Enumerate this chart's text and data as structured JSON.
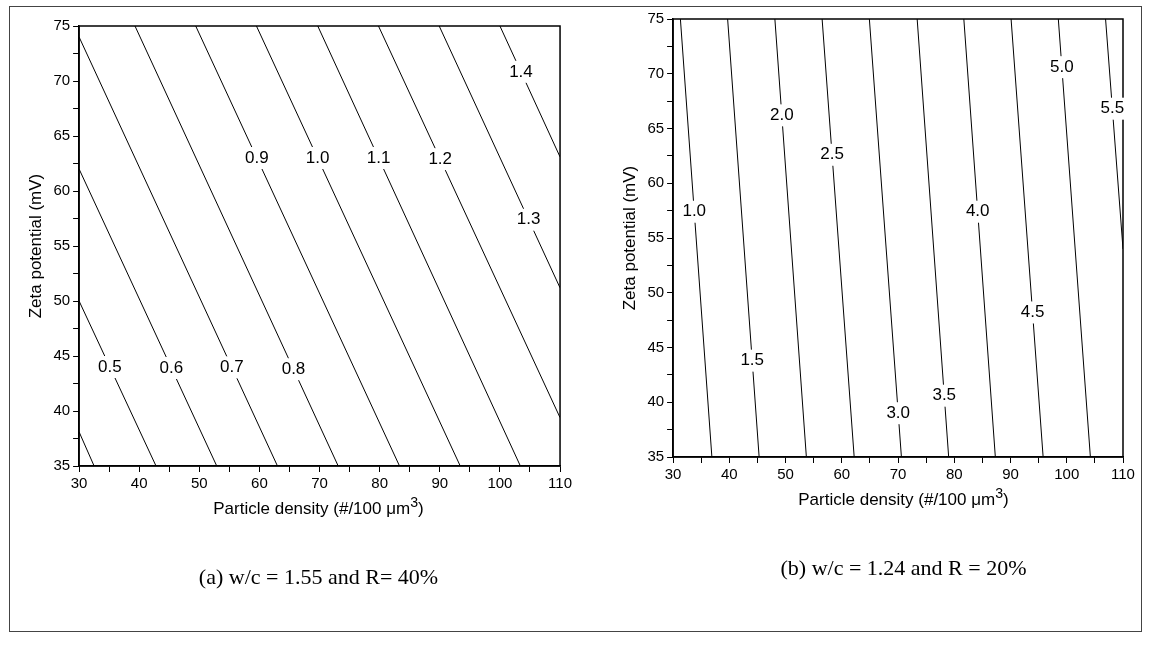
{
  "chart_data": [
    {
      "type": "line",
      "title": "(a) w/c = 1.55 and R= 40%",
      "xlabel": "Particle density (#/100 μm$^{3}$)",
      "ylabel": "Zeta potential (mV)",
      "line_style": "solid",
      "xlim": [
        30,
        110
      ],
      "ylim": [
        35,
        75
      ],
      "xticks": [
        30,
        {
          "value": 35,
          "label": null
        },
        40,
        {
          "value": 45,
          "label": null
        },
        50,
        {
          "value": 55,
          "label": null
        },
        60,
        {
          "value": 65,
          "label": null
        },
        70,
        {
          "value": 75,
          "label": null
        },
        80,
        {
          "value": 85,
          "label": null
        },
        90,
        {
          "value": 95,
          "label": null
        },
        100,
        {
          "value": 105,
          "label": null
        },
        110
      ],
      "yticks": [
        35,
        {
          "value": 37.5,
          "label": null
        },
        40,
        {
          "value": 42.5,
          "label": null
        },
        45,
        {
          "value": 47.5,
          "label": null
        },
        50,
        {
          "value": 52.5,
          "label": null
        },
        55,
        {
          "value": 57.5,
          "label": null
        },
        60,
        {
          "value": 62.5,
          "label": null
        },
        65,
        {
          "value": 67.5,
          "label": null
        },
        70,
        {
          "value": 72.5,
          "label": null
        },
        75
      ],
      "series": [
        {
          "color": "#000000",
          "x": [
            30,
            32.5
          ],
          "values": [
            38.1,
            35
          ]
        },
        {
          "name": "0.5",
          "color": "#000000",
          "x": [
            30,
            42.8
          ],
          "values": [
            50,
            35
          ]
        },
        {
          "name": "0.6",
          "color": "#000000",
          "x": [
            30,
            52.9
          ],
          "values": [
            62,
            35
          ]
        },
        {
          "name": "0.7",
          "color": "#000000",
          "x": [
            30,
            63
          ],
          "values": [
            74,
            35
          ]
        },
        {
          "name": "0.8",
          "color": "#000000",
          "x": [
            39.3,
            73.1
          ],
          "values": [
            75,
            35
          ]
        },
        {
          "name": "0.9",
          "color": "#000000",
          "x": [
            49.4,
            83.3
          ],
          "values": [
            75,
            35
          ]
        },
        {
          "name": "1.0",
          "color": "#000000",
          "x": [
            59.5,
            93.4
          ],
          "values": [
            75,
            35
          ]
        },
        {
          "name": "1.1",
          "color": "#000000",
          "x": [
            69.7,
            103.4
          ],
          "values": [
            75,
            35
          ]
        },
        {
          "name": "1.2",
          "color": "#000000",
          "x": [
            79.8,
            110
          ],
          "values": [
            75,
            39.4
          ]
        },
        {
          "name": "1.3",
          "color": "#000000",
          "x": [
            89.9,
            110
          ],
          "values": [
            75,
            51.2
          ]
        },
        {
          "name": "1.4",
          "color": "#000000",
          "x": [
            100,
            110
          ],
          "values": [
            75,
            63.1
          ]
        }
      ]
    },
    {
      "type": "line",
      "title": "(b) w/c = 1.24 and R = 20%",
      "xlabel": "Particle density (#/100 μm$^{3}$)",
      "ylabel": "Zeta potential (mV)",
      "line_style": "solid",
      "xlim": [
        30,
        110
      ],
      "ylim": [
        35,
        75
      ],
      "xticks": [
        30,
        {
          "value": 35,
          "label": null
        },
        40,
        {
          "value": 45,
          "label": null
        },
        50,
        {
          "value": 55,
          "label": null
        },
        60,
        {
          "value": 65,
          "label": null
        },
        70,
        {
          "value": 75,
          "label": null
        },
        80,
        {
          "value": 85,
          "label": null
        },
        90,
        {
          "value": 95,
          "label": null
        },
        100,
        {
          "value": 105,
          "label": null
        },
        110
      ],
      "yticks": [
        35,
        {
          "value": 37.5,
          "label": null
        },
        40,
        {
          "value": 42.5,
          "label": null
        },
        45,
        {
          "value": 47.5,
          "label": null
        },
        50,
        {
          "value": 52.5,
          "label": null
        },
        55,
        {
          "value": 57.5,
          "label": null
        },
        60,
        {
          "value": 62.5,
          "label": null
        },
        65,
        {
          "value": 67.5,
          "label": null
        },
        70,
        {
          "value": 72.5,
          "label": null
        },
        75
      ],
      "series": [
        {
          "name": "1.0",
          "color": "#000000",
          "x": [
            31.3,
            36.9
          ],
          "values": [
            75,
            35
          ]
        },
        {
          "name": "1.5",
          "color": "#000000",
          "x": [
            39.7,
            45.3
          ],
          "values": [
            75,
            35
          ]
        },
        {
          "name": "2.0",
          "color": "#000000",
          "x": [
            48.1,
            53.7
          ],
          "values": [
            75,
            35
          ]
        },
        {
          "name": "2.5",
          "color": "#000000",
          "x": [
            56.5,
            62.2
          ],
          "values": [
            75,
            35
          ]
        },
        {
          "name": "3.0",
          "color": "#000000",
          "x": [
            64.9,
            70.6
          ],
          "values": [
            75,
            35
          ]
        },
        {
          "name": "3.5",
          "color": "#000000",
          "x": [
            73.4,
            79
          ],
          "values": [
            75,
            35
          ]
        },
        {
          "name": "4.0",
          "color": "#000000",
          "x": [
            81.7,
            87.3
          ],
          "values": [
            75,
            35
          ]
        },
        {
          "name": "4.5",
          "color": "#000000",
          "x": [
            90.1,
            95.8
          ],
          "values": [
            75,
            35
          ]
        },
        {
          "name": "5.0",
          "color": "#000000",
          "x": [
            98.5,
            104.2
          ],
          "values": [
            75,
            35
          ]
        },
        {
          "name": "5.5",
          "color": "#000000",
          "x": [
            106.9,
            110
          ],
          "values": [
            75,
            54
          ]
        }
      ]
    }
  ]
}
